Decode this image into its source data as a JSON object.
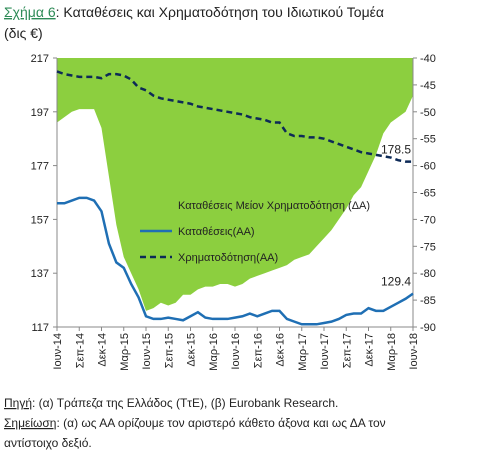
{
  "chart_data": {
    "type": "line",
    "title_prefix": "Σχήμα 6",
    "title": ": Καταθέσεις και Χρηματοδότηση του Ιδιωτικού Τομέα",
    "subtitle": "(δις €)",
    "categories": [
      "Ιουν-14",
      null,
      null,
      "Σεπ-14",
      null,
      null,
      "Δεκ-14",
      null,
      null,
      "Μαρ-15",
      null,
      null,
      "Ιουν-15",
      null,
      null,
      "Σεπ-15",
      null,
      null,
      "Δεκ-15",
      null,
      null,
      "Μαρ-16",
      null,
      null,
      "Ιουν-16",
      null,
      null,
      "Σεπ-16",
      null,
      null,
      "Δεκ-16",
      null,
      null,
      "Μαρ-17",
      null,
      null,
      "Ιουν-17",
      null,
      null,
      "Σεπ-17",
      null,
      null,
      "Δεκ-17",
      null,
      null,
      "Μαρ-18",
      null,
      null,
      "Ιουν-18"
    ],
    "series": [
      {
        "name": "Καταθέσεις Μείον Χρηματοδότηση (ΔΑ)",
        "kind": "area",
        "axis": "y2",
        "color": "#8ccf3f",
        "values": [
          -52,
          -51,
          -50,
          -49.5,
          -49.5,
          -49.5,
          -53,
          -62,
          -71,
          -77,
          -80,
          -83,
          -87,
          -86.5,
          -85.5,
          -86,
          -85.5,
          -84,
          -84,
          -83,
          -82.5,
          -82.5,
          -82,
          -82,
          -82.5,
          -82,
          -81,
          -80.5,
          -80,
          -79.5,
          -79,
          -78.5,
          -77.5,
          -77,
          -76.5,
          -75,
          -73.5,
          -72,
          -70,
          -68,
          -65.5,
          -64,
          -61,
          -58,
          -54,
          -52,
          -51,
          -50,
          -47
        ]
      },
      {
        "name": "Καταθέσεις(ΑΑ)",
        "kind": "line",
        "axis": "y",
        "color": "#1f6fb4",
        "values": [
          163,
          163,
          164,
          165,
          165,
          164,
          160,
          148,
          141,
          139,
          133,
          128,
          121,
          120,
          120,
          120.5,
          120,
          119.5,
          121,
          122.5,
          120.5,
          120,
          120,
          120,
          120.5,
          121,
          122,
          121,
          122,
          123,
          123,
          120,
          119,
          118,
          118,
          118,
          118.5,
          119,
          120,
          121.5,
          122,
          122,
          124,
          123,
          123,
          124.5,
          126,
          127.5,
          129.4
        ]
      },
      {
        "name": "Χρηματοδότηση(ΑΑ)",
        "kind": "dashed",
        "axis": "y",
        "color": "#0d2a57",
        "values": [
          212,
          211,
          210.5,
          210,
          210,
          210,
          209.5,
          211,
          211,
          210.5,
          209,
          206,
          205,
          203,
          202,
          201.5,
          201,
          200.5,
          200,
          199,
          198.5,
          198,
          197.5,
          197,
          196.5,
          196,
          195,
          194.5,
          194,
          193,
          193,
          189,
          188,
          188,
          187.5,
          187.5,
          187,
          186,
          185,
          184,
          183,
          182,
          181.5,
          181,
          180.5,
          180,
          179,
          178.5,
          178.5
        ]
      }
    ],
    "annotations": [
      "178.5",
      "129.4"
    ],
    "ylim": [
      117,
      217
    ],
    "yticks": [
      117,
      137,
      157,
      177,
      197,
      217
    ],
    "y2lim": [
      -90,
      -40
    ],
    "y2ticks": [
      -90,
      -85,
      -80,
      -75,
      -70,
      -65,
      -60,
      -55,
      -50,
      -45,
      -40
    ],
    "legend": "center-right",
    "footer": {
      "source_label": "Πηγή",
      "source_text": ": (α) Τράπεζα της Ελλάδος (ΤτΕ), (β) Eurobank Research.",
      "note_label": "Σημείωση",
      "note_text": ": (α) ως ΑΑ ορίζουμε τον αριστερό κάθετο άξονα και ως ΔΑ τον",
      "note_text2": "αντίστοιχο δεξιό."
    }
  }
}
